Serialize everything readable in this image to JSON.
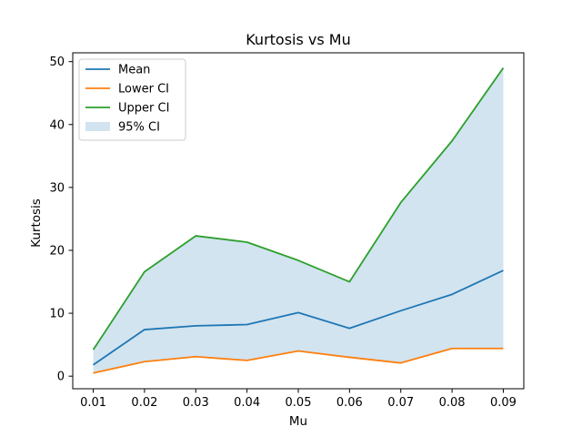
{
  "chart_data": {
    "type": "line",
    "title": "Kurtosis vs Mu",
    "xlabel": "Mu",
    "ylabel": "Kurtosis",
    "x": [
      0.01,
      0.02,
      0.03,
      0.04,
      0.05,
      0.06,
      0.07,
      0.08,
      0.09
    ],
    "x_tick_labels": [
      "0.01",
      "0.02",
      "0.03",
      "0.04",
      "0.05",
      "0.06",
      "0.07",
      "0.08",
      "0.09"
    ],
    "y_ticks": [
      0,
      10,
      20,
      30,
      40,
      50
    ],
    "y_tick_labels": [
      "0",
      "10",
      "20",
      "30",
      "40",
      "50"
    ],
    "xlim": [
      0.006,
      0.094
    ],
    "ylim": [
      -2.0,
      51.4
    ],
    "grid": false,
    "legend_position": "top-left",
    "series": [
      {
        "name": "Mean",
        "color": "#1f77b4",
        "values": [
          1.8,
          7.4,
          8.0,
          8.2,
          10.1,
          7.6,
          10.4,
          13.0,
          16.8
        ]
      },
      {
        "name": "Lower CI",
        "color": "#ff7f0e",
        "values": [
          0.5,
          2.3,
          3.1,
          2.5,
          4.0,
          3.0,
          2.1,
          4.4,
          4.4
        ]
      },
      {
        "name": "Upper CI",
        "color": "#2ca02c",
        "values": [
          4.2,
          16.6,
          22.3,
          21.3,
          18.4,
          15.0,
          27.6,
          37.4,
          49.0
        ]
      }
    ],
    "band": {
      "name": "95% CI",
      "color": "#1f77b4",
      "opacity": 0.2,
      "lower_series": "Lower CI",
      "upper_series": "Upper CI"
    }
  }
}
